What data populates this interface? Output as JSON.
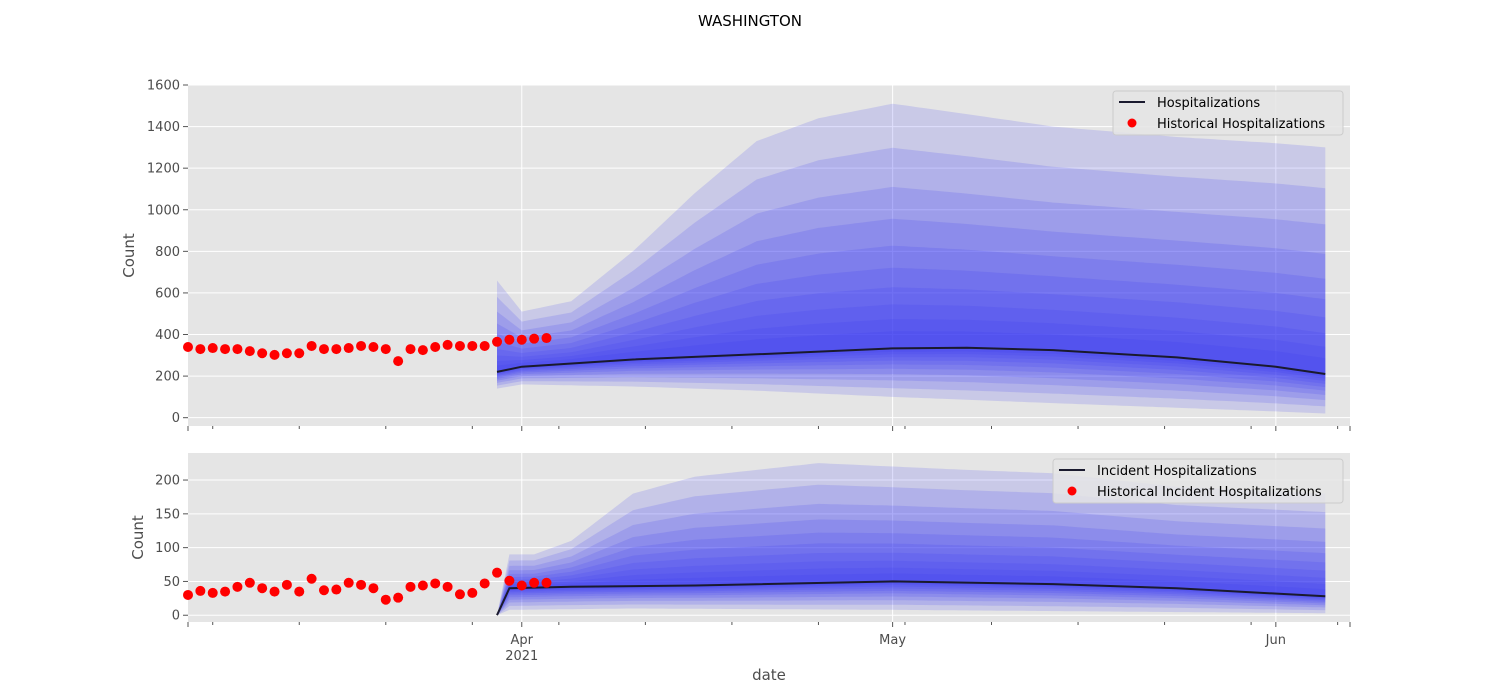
{
  "figure": {
    "title": "WASHINGTON"
  },
  "chart_data": [
    {
      "type": "line",
      "xlabel": "",
      "ylabel": "Count",
      "ylim": [
        -40,
        1600
      ],
      "yticks": [
        0,
        200,
        400,
        600,
        800,
        1000,
        1200,
        1400,
        1600
      ],
      "grid": true,
      "legend_placement": "top-right",
      "legend": [
        "Hospitalizations",
        "Historical Hospitalizations"
      ],
      "xlim": [
        "2021-03-05",
        "2021-06-07"
      ],
      "xticks": [
        {
          "date": "2021-04-01",
          "label": "Apr",
          "sublabel": "2021"
        },
        {
          "date": "2021-05-01",
          "label": "May",
          "sublabel": ""
        },
        {
          "date": "2021-06-01",
          "label": "Jun",
          "sublabel": ""
        }
      ],
      "series": [
        {
          "name": "Historical Hospitalizations",
          "style": "scatter",
          "color": "#ff0000",
          "start_date": "2021-03-05",
          "values": [
            340,
            330,
            335,
            330,
            330,
            320,
            310,
            302,
            310,
            310,
            345,
            330,
            330,
            335,
            345,
            340,
            330,
            272,
            330,
            325,
            340,
            350,
            345,
            345,
            345,
            365,
            375,
            375,
            380,
            383
          ]
        },
        {
          "name": "Hospitalizations",
          "style": "line",
          "color": "#1a1a2e",
          "points": [
            [
              "2021-03-30",
              220
            ],
            [
              "2021-04-01",
              245
            ],
            [
              "2021-04-10",
              280
            ],
            [
              "2021-04-20",
              305
            ],
            [
              "2021-05-01",
              333
            ],
            [
              "2021-05-07",
              336
            ],
            [
              "2021-05-14",
              325
            ],
            [
              "2021-05-24",
              290
            ],
            [
              "2021-06-01",
              245
            ],
            [
              "2021-06-05",
              210
            ]
          ]
        }
      ],
      "fan_bands": {
        "color": "#3b3bf0",
        "outer_upper": [
          [
            "2021-03-30",
            660
          ],
          [
            "2021-04-01",
            510
          ],
          [
            "2021-04-05",
            560
          ],
          [
            "2021-04-10",
            800
          ],
          [
            "2021-04-15",
            1080
          ],
          [
            "2021-04-20",
            1330
          ],
          [
            "2021-04-25",
            1440
          ],
          [
            "2021-05-01",
            1510
          ],
          [
            "2021-05-07",
            1460
          ],
          [
            "2021-05-14",
            1400
          ],
          [
            "2021-05-24",
            1350
          ],
          [
            "2021-06-01",
            1320
          ],
          [
            "2021-06-05",
            1300
          ]
        ],
        "outer_lower": [
          [
            "2021-03-30",
            140
          ],
          [
            "2021-04-01",
            160
          ],
          [
            "2021-04-10",
            150
          ],
          [
            "2021-04-20",
            130
          ],
          [
            "2021-05-01",
            100
          ],
          [
            "2021-05-14",
            70
          ],
          [
            "2021-06-01",
            30
          ],
          [
            "2021-06-05",
            20
          ]
        ]
      }
    },
    {
      "type": "line",
      "xlabel": "date",
      "ylabel": "Count",
      "ylim": [
        -10,
        240
      ],
      "yticks": [
        0,
        50,
        100,
        150,
        200
      ],
      "grid": true,
      "legend_placement": "top-right",
      "legend": [
        "Incident Hospitalizations",
        "Historical Incident Hospitalizations"
      ],
      "xlim": [
        "2021-03-05",
        "2021-06-07"
      ],
      "xticks": [
        {
          "date": "2021-04-01",
          "label": "Apr",
          "sublabel": "2021"
        },
        {
          "date": "2021-05-01",
          "label": "May",
          "sublabel": ""
        },
        {
          "date": "2021-06-01",
          "label": "Jun",
          "sublabel": ""
        }
      ],
      "series": [
        {
          "name": "Historical Incident Hospitalizations",
          "style": "scatter",
          "color": "#ff0000",
          "start_date": "2021-03-05",
          "values": [
            30,
            36,
            33,
            35,
            42,
            48,
            40,
            35,
            45,
            35,
            54,
            37,
            38,
            48,
            45,
            40,
            23,
            26,
            42,
            44,
            47,
            42,
            31,
            33,
            47,
            63,
            51,
            44,
            48,
            48
          ]
        },
        {
          "name": "Incident Hospitalizations",
          "style": "line",
          "color": "#1a1a2e",
          "points": [
            [
              "2021-03-30",
              0
            ],
            [
              "2021-03-31",
              40
            ],
            [
              "2021-04-05",
              42
            ],
            [
              "2021-04-15",
              44
            ],
            [
              "2021-05-01",
              50
            ],
            [
              "2021-05-14",
              46
            ],
            [
              "2021-05-24",
              40
            ],
            [
              "2021-06-05",
              28
            ]
          ]
        }
      ],
      "fan_bands": {
        "color": "#3b3bf0",
        "outer_upper": [
          [
            "2021-03-30",
            0
          ],
          [
            "2021-03-31",
            90
          ],
          [
            "2021-04-02",
            90
          ],
          [
            "2021-04-05",
            110
          ],
          [
            "2021-04-10",
            180
          ],
          [
            "2021-04-15",
            205
          ],
          [
            "2021-04-20",
            215
          ],
          [
            "2021-04-25",
            225
          ],
          [
            "2021-05-01",
            220
          ],
          [
            "2021-05-07",
            215
          ],
          [
            "2021-05-14",
            210
          ],
          [
            "2021-05-24",
            190
          ],
          [
            "2021-06-05",
            180
          ]
        ],
        "outer_lower": [
          [
            "2021-03-30",
            0
          ],
          [
            "2021-03-31",
            8
          ],
          [
            "2021-04-10",
            10
          ],
          [
            "2021-05-01",
            8
          ],
          [
            "2021-06-05",
            3
          ]
        ]
      }
    }
  ]
}
